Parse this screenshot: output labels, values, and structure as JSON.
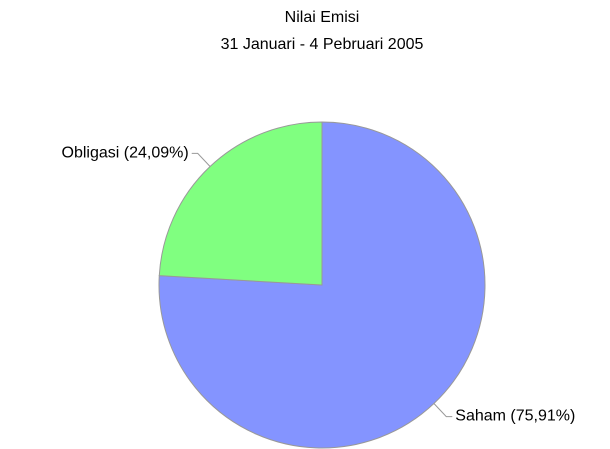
{
  "chart_data": {
    "type": "pie",
    "title": "Nilai Emisi",
    "subtitle": "31 Januari - 4 Pebruari 2005",
    "categories": [
      "Saham",
      "Obligasi"
    ],
    "values": [
      75.91,
      24.09
    ],
    "value_labels": [
      "(75,91%)",
      "(24,09%)"
    ],
    "colors": [
      "#8494ff",
      "#80ff80"
    ]
  }
}
